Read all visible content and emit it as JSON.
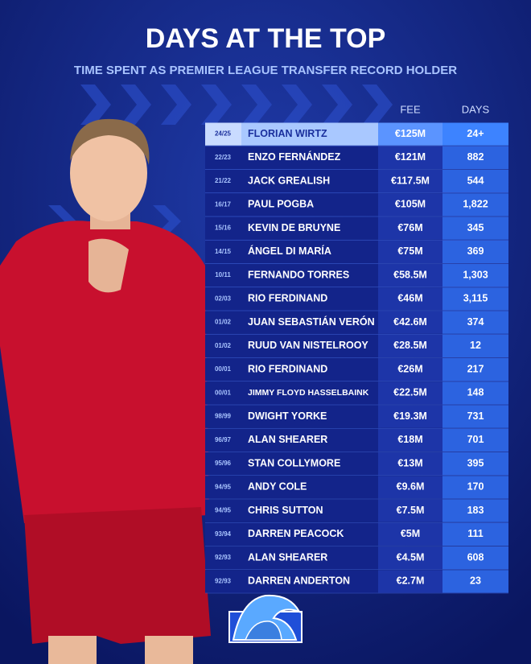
{
  "header": {
    "title": "DAYS AT THE TOP",
    "subtitle": "TIME SPENT AS PREMIER LEAGUE TRANSFER RECORD HOLDER"
  },
  "table": {
    "columns": [
      "FEE",
      "DAYS"
    ],
    "rows": [
      [
        "24/25",
        "FLORIAN WIRTZ",
        "€125M",
        "24+"
      ],
      [
        "22/23",
        "ENZO FERNÁNDEZ",
        "€121M",
        "882"
      ],
      [
        "21/22",
        "JACK GREALISH",
        "€117.5M",
        "544"
      ],
      [
        "16/17",
        "PAUL POGBA",
        "€105M",
        "1,822"
      ],
      [
        "15/16",
        "KEVIN DE BRUYNE",
        "€76M",
        "345"
      ],
      [
        "14/15",
        "ÁNGEL DI MARÍA",
        "€75M",
        "369"
      ],
      [
        "10/11",
        "FERNANDO TORRES",
        "€58.5M",
        "1,303"
      ],
      [
        "02/03",
        "RIO FERDINAND",
        "€46M",
        "3,115"
      ],
      [
        "01/02",
        "JUAN SEBASTIÁN VERÓN",
        "€42.6M",
        "374"
      ],
      [
        "01/02",
        "RUUD VAN NISTELROOY",
        "€28.5M",
        "12"
      ],
      [
        "00/01",
        "RIO FERDINAND",
        "€26M",
        "217"
      ],
      [
        "00/01",
        "JIMMY FLOYD HASSELBAINK",
        "€22.5M",
        "148"
      ],
      [
        "98/99",
        "DWIGHT YORKE",
        "€19.3M",
        "731"
      ],
      [
        "96/97",
        "ALAN SHEARER",
        "€18M",
        "701"
      ],
      [
        "95/96",
        "STAN COLLYMORE",
        "€13M",
        "395"
      ],
      [
        "94/95",
        "ANDY COLE",
        "€9.6M",
        "170"
      ],
      [
        "94/95",
        "CHRIS SUTTON",
        "€7.5M",
        "183"
      ],
      [
        "93/94",
        "DARREN PEACOCK",
        "€5M",
        "111"
      ],
      [
        "92/93",
        "ALAN SHEARER",
        "€4.5M",
        "608"
      ],
      [
        "92/93",
        "DARREN ANDERTON",
        "€2.7M",
        "23"
      ]
    ]
  }
}
